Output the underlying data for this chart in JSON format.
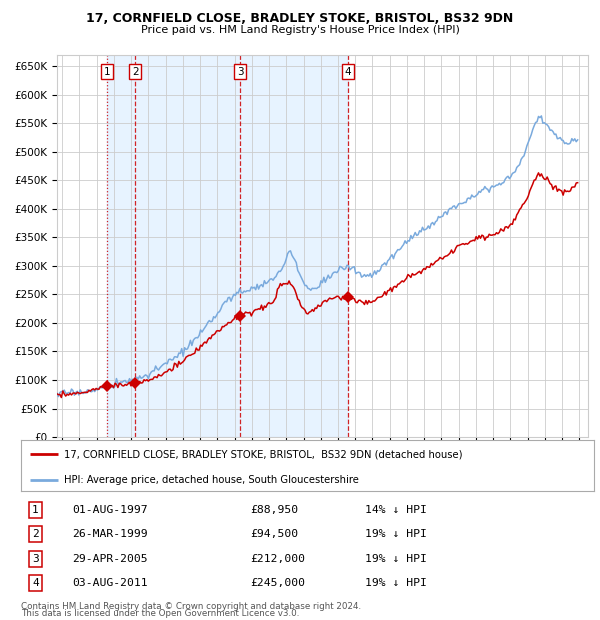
{
  "title1": "17, CORNFIELD CLOSE, BRADLEY STOKE, BRISTOL, BS32 9DN",
  "title2": "Price paid vs. HM Land Registry's House Price Index (HPI)",
  "legend_line1": "17, CORNFIELD CLOSE, BRADLEY STOKE, BRISTOL,  BS32 9DN (detached house)",
  "legend_line2": "HPI: Average price, detached house, South Gloucestershire",
  "footer1": "Contains HM Land Registry data © Crown copyright and database right 2024.",
  "footer2": "This data is licensed under the Open Government Licence v3.0.",
  "sale_dates": [
    "1997-08-01",
    "1999-03-26",
    "2005-04-29",
    "2011-08-03"
  ],
  "sale_prices": [
    88950,
    94500,
    212000,
    245000
  ],
  "sale_labels": [
    "1",
    "2",
    "3",
    "4"
  ],
  "sale_pct": [
    "14% ↓ HPI",
    "19% ↓ HPI",
    "19% ↓ HPI",
    "19% ↓ HPI"
  ],
  "sale_dates_str": [
    "01-AUG-1997",
    "26-MAR-1999",
    "29-APR-2005",
    "03-AUG-2011"
  ],
  "red_color": "#cc0000",
  "blue_color": "#7aaadd",
  "bg_shaded": "#ddeeff",
  "grid_color": "#cccccc",
  "ylim": [
    0,
    670000
  ],
  "yticks": [
    0,
    50000,
    100000,
    150000,
    200000,
    250000,
    300000,
    350000,
    400000,
    450000,
    500000,
    550000,
    600000,
    650000
  ],
  "xlim_start": 1994.7,
  "xlim_end": 2025.5,
  "hpi_keypoints": [
    [
      1994.7,
      76000
    ],
    [
      1995.5,
      78000
    ],
    [
      1996.5,
      80000
    ],
    [
      1997.5,
      88000
    ],
    [
      1998.5,
      96000
    ],
    [
      1999.5,
      104000
    ],
    [
      2000.5,
      118000
    ],
    [
      2001.5,
      138000
    ],
    [
      2002.5,
      163000
    ],
    [
      2003.5,
      198000
    ],
    [
      2004.5,
      238000
    ],
    [
      2005.2,
      252000
    ],
    [
      2005.8,
      258000
    ],
    [
      2006.5,
      266000
    ],
    [
      2007.3,
      278000
    ],
    [
      2007.8,
      295000
    ],
    [
      2008.2,
      328000
    ],
    [
      2008.5,
      310000
    ],
    [
      2008.9,
      275000
    ],
    [
      2009.3,
      258000
    ],
    [
      2009.7,
      262000
    ],
    [
      2010.2,
      275000
    ],
    [
      2010.8,
      288000
    ],
    [
      2011.2,
      295000
    ],
    [
      2011.8,
      298000
    ],
    [
      2012.2,
      285000
    ],
    [
      2012.8,
      282000
    ],
    [
      2013.3,
      290000
    ],
    [
      2013.8,
      305000
    ],
    [
      2014.5,
      328000
    ],
    [
      2015.5,
      355000
    ],
    [
      2016.5,
      375000
    ],
    [
      2017.5,
      398000
    ],
    [
      2018.5,
      418000
    ],
    [
      2019.5,
      435000
    ],
    [
      2020.0,
      438000
    ],
    [
      2020.5,
      445000
    ],
    [
      2021.0,
      455000
    ],
    [
      2021.5,
      478000
    ],
    [
      2022.0,
      510000
    ],
    [
      2022.4,
      548000
    ],
    [
      2022.7,
      562000
    ],
    [
      2022.9,
      555000
    ],
    [
      2023.2,
      542000
    ],
    [
      2023.5,
      532000
    ],
    [
      2023.8,
      525000
    ],
    [
      2024.2,
      515000
    ],
    [
      2024.6,
      520000
    ],
    [
      2024.9,
      522000
    ]
  ],
  "red_keypoints": [
    [
      1994.7,
      74000
    ],
    [
      1995.5,
      76000
    ],
    [
      1996.5,
      79000
    ],
    [
      1997.6,
      88950
    ],
    [
      1998.2,
      91000
    ],
    [
      1999.0,
      93000
    ],
    [
      1999.25,
      94500
    ],
    [
      1999.8,
      98000
    ],
    [
      2000.5,
      106000
    ],
    [
      2001.5,
      122000
    ],
    [
      2002.5,
      143000
    ],
    [
      2003.5,
      172000
    ],
    [
      2004.5,
      197000
    ],
    [
      2005.32,
      212000
    ],
    [
      2005.8,
      218000
    ],
    [
      2006.3,
      222000
    ],
    [
      2006.8,
      230000
    ],
    [
      2007.3,
      240000
    ],
    [
      2007.6,
      265000
    ],
    [
      2007.9,
      268000
    ],
    [
      2008.2,
      270000
    ],
    [
      2008.5,
      258000
    ],
    [
      2008.9,
      228000
    ],
    [
      2009.2,
      215000
    ],
    [
      2009.5,
      220000
    ],
    [
      2009.9,
      230000
    ],
    [
      2010.3,
      238000
    ],
    [
      2010.8,
      243000
    ],
    [
      2011.0,
      244000
    ],
    [
      2011.58,
      245000
    ],
    [
      2012.0,
      240000
    ],
    [
      2012.5,
      234000
    ],
    [
      2013.0,
      238000
    ],
    [
      2013.5,
      245000
    ],
    [
      2014.0,
      258000
    ],
    [
      2015.0,
      278000
    ],
    [
      2016.0,
      293000
    ],
    [
      2017.0,
      313000
    ],
    [
      2018.0,
      332000
    ],
    [
      2019.0,
      348000
    ],
    [
      2020.0,
      354000
    ],
    [
      2021.0,
      372000
    ],
    [
      2022.0,
      418000
    ],
    [
      2022.4,
      452000
    ],
    [
      2022.7,
      462000
    ],
    [
      2022.9,
      455000
    ],
    [
      2023.1,
      448000
    ],
    [
      2023.5,
      440000
    ],
    [
      2024.0,
      428000
    ],
    [
      2024.5,
      432000
    ],
    [
      2024.9,
      450000
    ]
  ]
}
